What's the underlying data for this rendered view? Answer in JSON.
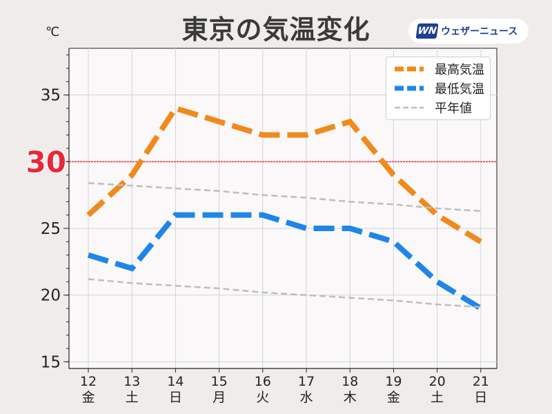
{
  "chart_data": {
    "type": "line",
    "title": "東京の気温変化",
    "unit": "℃",
    "brand": {
      "mark": "WN",
      "name": "ウェザーニュース"
    },
    "x_dates": [
      "12",
      "13",
      "14",
      "15",
      "16",
      "17",
      "18",
      "19",
      "20",
      "21"
    ],
    "x_weekdays": [
      "金",
      "土",
      "日",
      "月",
      "火",
      "水",
      "木",
      "金",
      "土",
      "日"
    ],
    "x_label_colors": [
      "#222222",
      "#2a8bd8",
      "#d9343d",
      "#d9343d",
      "#222222",
      "#222222",
      "#222222",
      "#222222",
      "#2a8bd8",
      "#d9343d"
    ],
    "yticks": [
      15,
      20,
      25,
      30,
      35
    ],
    "ylim": [
      14.5,
      38.5
    ],
    "grid": true,
    "legend_position": "top-right",
    "highlight_line": {
      "value": 30,
      "label": "30",
      "color": "#e8283a"
    },
    "series": [
      {
        "name": "最高気温",
        "color": "#f08a1c",
        "style": "dashed-thick",
        "values": [
          26,
          29,
          34,
          33,
          32,
          32,
          33,
          29,
          26,
          24
        ]
      },
      {
        "name": "最低気温",
        "color": "#1f86e8",
        "style": "dashed-thick",
        "values": [
          23,
          22,
          26,
          26,
          26,
          25,
          25,
          24,
          21,
          19
        ]
      },
      {
        "name": "平年値",
        "color": "#bdbdbd",
        "style": "dashed-thin",
        "values": [
          28.4,
          28.2,
          28.0,
          27.8,
          27.5,
          27.3,
          27.0,
          26.8,
          26.5,
          26.3
        ]
      },
      {
        "name": "",
        "color": "#bdbdbd",
        "style": "dashed-thin",
        "values": [
          21.2,
          20.9,
          20.7,
          20.5,
          20.2,
          20.0,
          19.8,
          19.6,
          19.3,
          19.1
        ]
      }
    ]
  }
}
